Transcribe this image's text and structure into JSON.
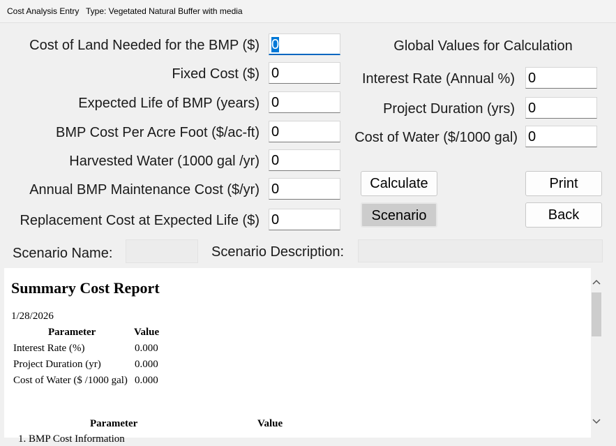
{
  "window": {
    "title": "Cost Analysis Entry",
    "type_label": "Type: Vegetated Natural Buffer with media"
  },
  "form": {
    "fields": [
      {
        "label": "Cost of Land Needed for the BMP ($)",
        "value": "0"
      },
      {
        "label": "Fixed Cost ($)",
        "value": "0"
      },
      {
        "label": "Expected Life of BMP (years)",
        "value": "0"
      },
      {
        "label": "BMP Cost Per Acre Foot ($/ac-ft)",
        "value": "0"
      },
      {
        "label": "Harvested Water (1000 gal /yr)",
        "value": "0"
      },
      {
        "label": "Annual BMP Maintenance Cost ($/yr)",
        "value": "0"
      },
      {
        "label": "Replacement Cost at Expected Life ($)",
        "value": "0"
      }
    ]
  },
  "global": {
    "heading": "Global Values for Calculation",
    "fields": [
      {
        "label": "Interest Rate (Annual %)",
        "value": "0"
      },
      {
        "label": "Project Duration (yrs)",
        "value": "0"
      },
      {
        "label": "Cost of Water ($/1000 gal)",
        "value": "0"
      }
    ]
  },
  "buttons": [
    "Calculate",
    "Print",
    "Scenario",
    "Back"
  ],
  "scenario": {
    "name_label": "Scenario Name:",
    "description_label": "Scenario Description:"
  },
  "report": {
    "title": "Summary Cost Report",
    "date": "1/28/2026",
    "table1": {
      "headers": [
        "Parameter",
        "Value"
      ],
      "rows": [
        [
          "Interest Rate (%)",
          "0.000"
        ],
        [
          "Project Duration (yr)",
          "0.000"
        ],
        [
          "Cost of Water ($ /1000 gal)",
          "0.000"
        ]
      ]
    },
    "table2": {
      "headers": [
        "Parameter",
        "Value"
      ],
      "rows": [
        [
          "1. BMP Cost Information"
        ]
      ]
    }
  }
}
